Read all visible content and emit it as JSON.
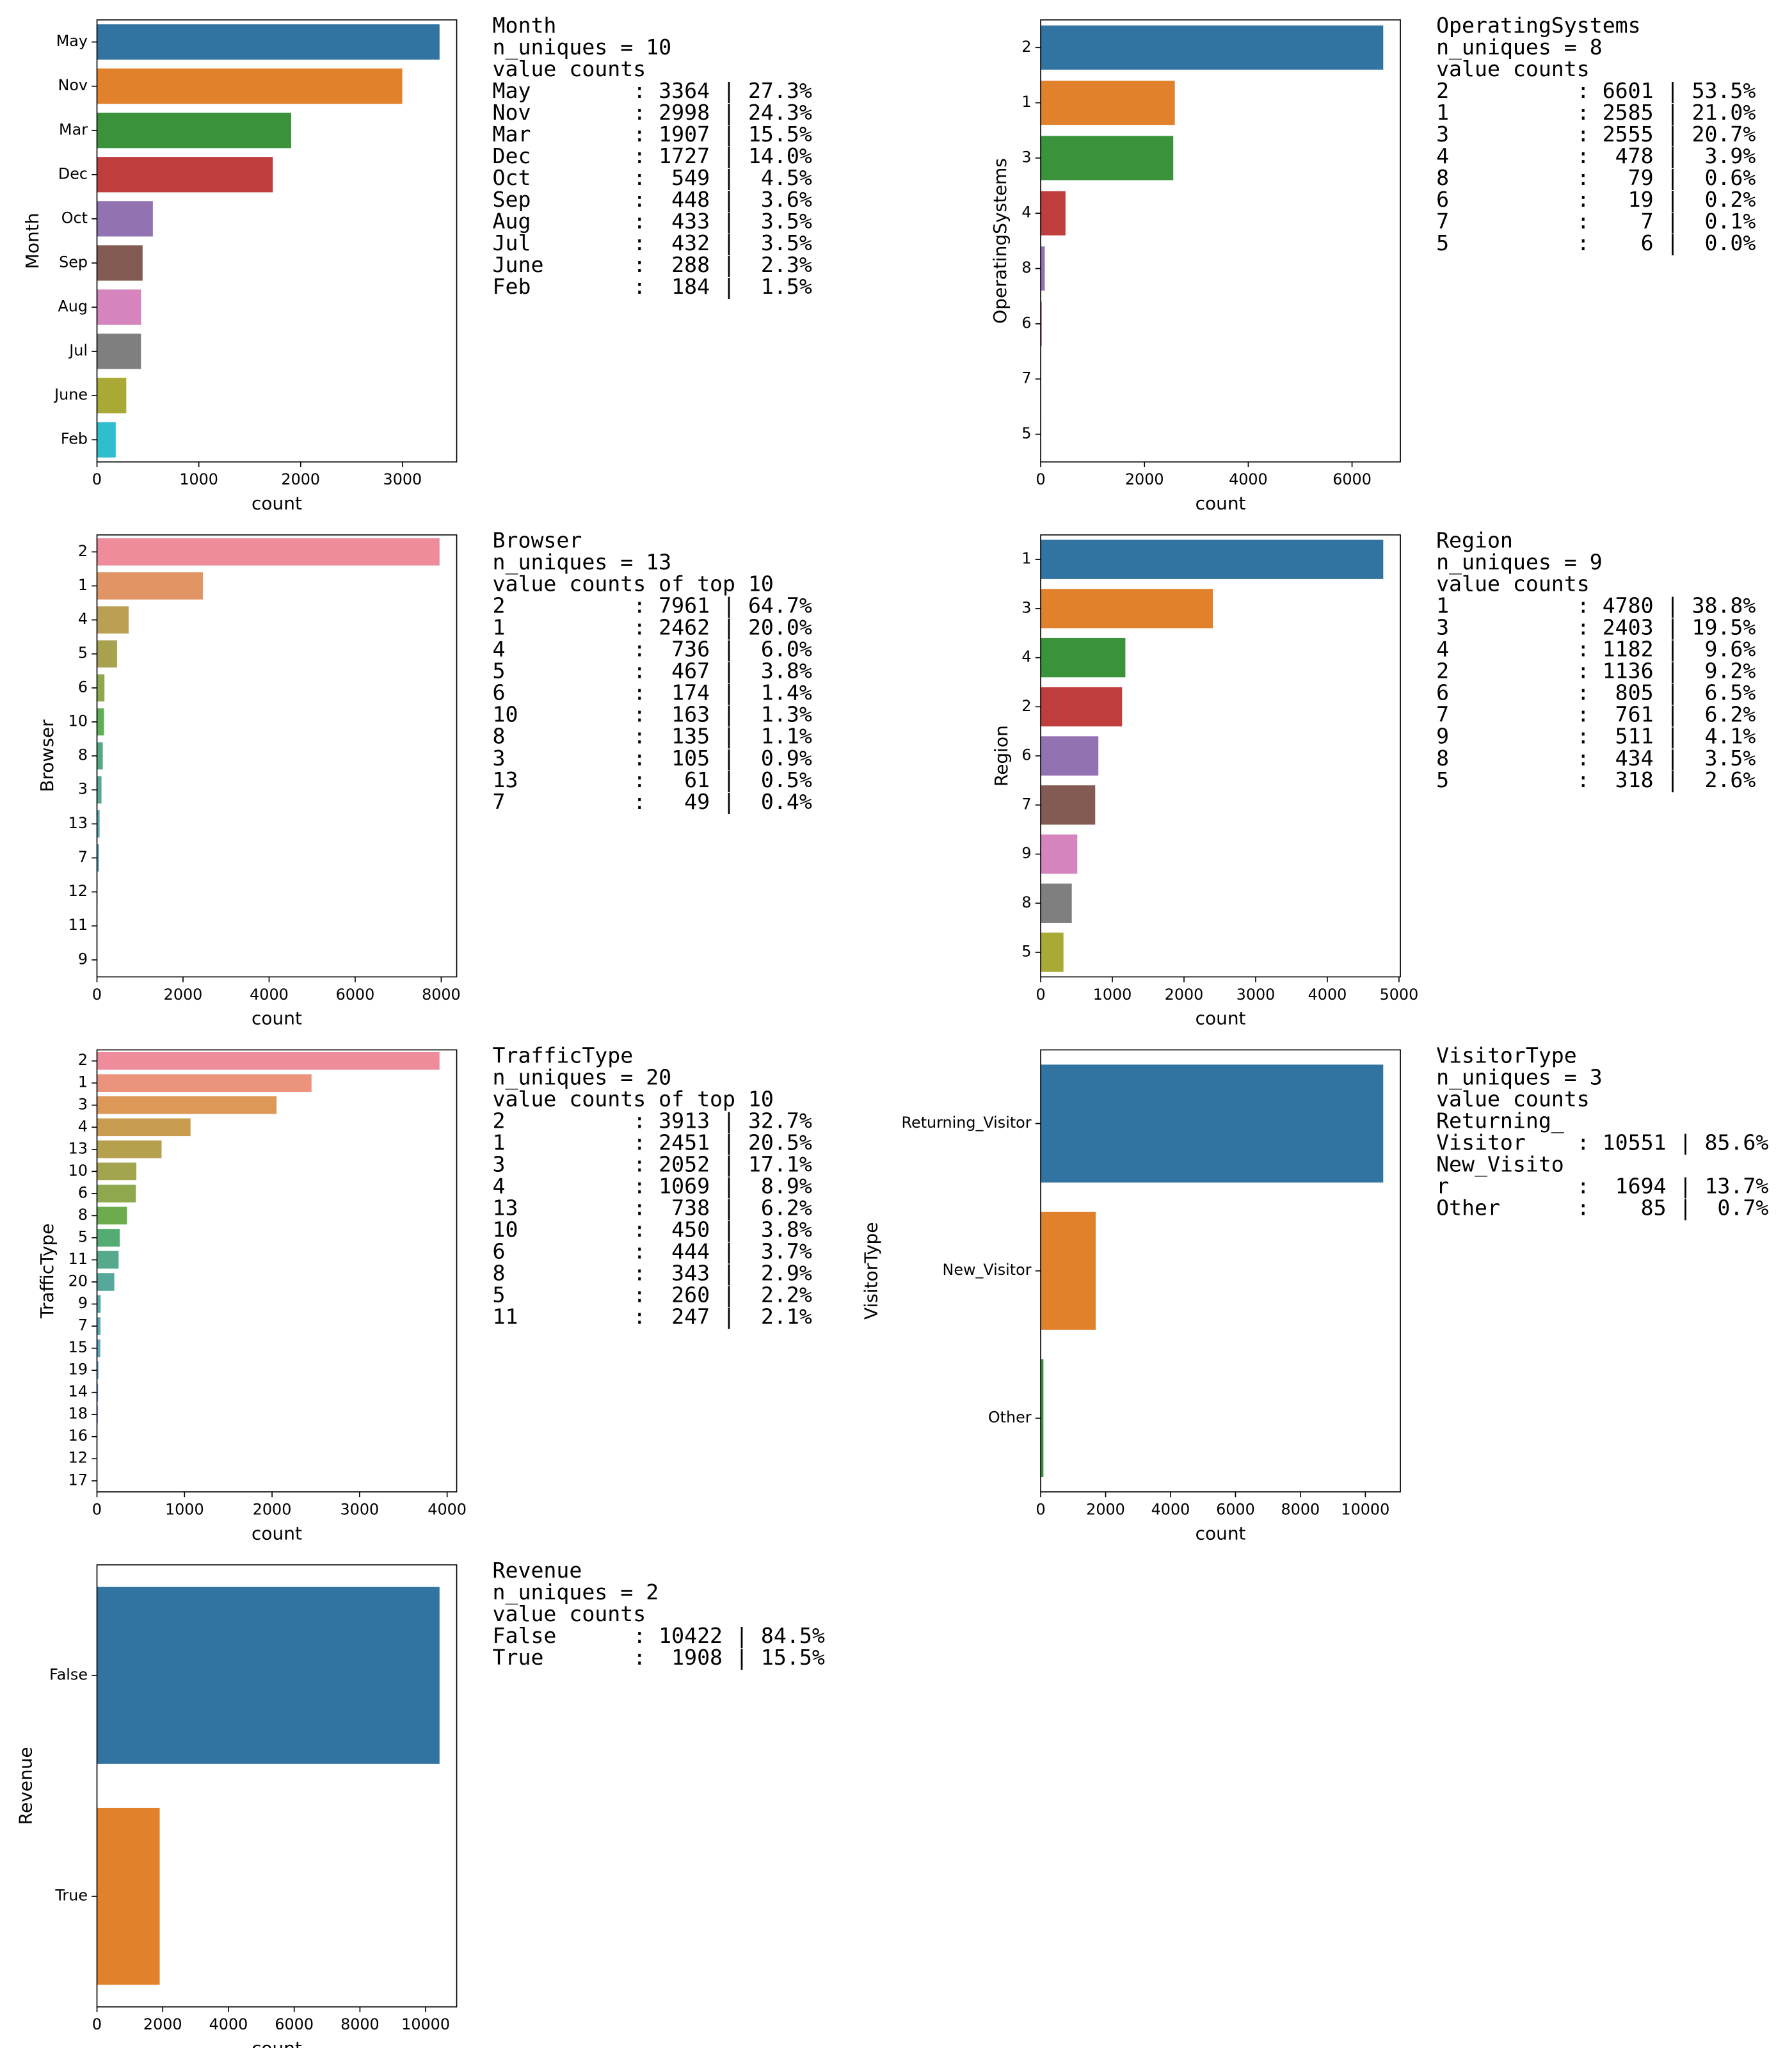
{
  "chart_data": [
    {
      "type": "bar",
      "orientation": "horizontal",
      "ylabel": "Month",
      "xlabel": "count",
      "categories": [
        "May",
        "Nov",
        "Mar",
        "Dec",
        "Oct",
        "Sep",
        "Aug",
        "Jul",
        "June",
        "Feb"
      ],
      "values": [
        3364,
        2998,
        1907,
        1727,
        549,
        448,
        433,
        432,
        288,
        184
      ],
      "colors": [
        "#3274a1",
        "#e1812c",
        "#3a923a",
        "#c03d3e",
        "#9372b2",
        "#845b53",
        "#d684bd",
        "#7f7f7f",
        "#a9aa35",
        "#2ebece"
      ],
      "xlim": [
        0,
        3532
      ],
      "xticks": [
        0,
        1000,
        2000,
        3000
      ],
      "summary": [
        "Month",
        "n_uniques = 10",
        "value counts",
        "May        : 3364 | 27.3%",
        "Nov        : 2998 | 24.3%",
        "Mar        : 1907 | 15.5%",
        "Dec        : 1727 | 14.0%",
        "Oct        :  549 |  4.5%",
        "Sep        :  448 |  3.6%",
        "Aug        :  433 |  3.5%",
        "Jul        :  432 |  3.5%",
        "June       :  288 |  2.3%",
        "Feb        :  184 |  1.5%"
      ]
    },
    {
      "type": "bar",
      "orientation": "horizontal",
      "ylabel": "OperatingSystems",
      "xlabel": "count",
      "categories": [
        "2",
        "1",
        "3",
        "4",
        "8",
        "6",
        "7",
        "5"
      ],
      "values": [
        6601,
        2585,
        2555,
        478,
        79,
        19,
        7,
        6
      ],
      "colors": [
        "#3274a1",
        "#e1812c",
        "#3a923a",
        "#c03d3e",
        "#9372b2",
        "#845b53",
        "#d684bd",
        "#7f7f7f"
      ],
      "xlim": [
        0,
        6931
      ],
      "xticks": [
        0,
        2000,
        4000,
        6000
      ],
      "summary": [
        "OperatingSystems",
        "n_uniques = 8",
        "value counts",
        "2          : 6601 | 53.5%",
        "1          : 2585 | 21.0%",
        "3          : 2555 | 20.7%",
        "4          :  478 |  3.9%",
        "8          :   79 |  0.6%",
        "6          :   19 |  0.2%",
        "7          :    7 |  0.1%",
        "5          :    6 |  0.0%"
      ]
    },
    {
      "type": "bar",
      "orientation": "horizontal",
      "ylabel": "Browser",
      "xlabel": "count",
      "categories": [
        "2",
        "1",
        "4",
        "5",
        "6",
        "10",
        "8",
        "3",
        "13",
        "7",
        "12",
        "11",
        "9"
      ],
      "values": [
        7961,
        2462,
        736,
        467,
        174,
        163,
        135,
        105,
        61,
        49,
        10,
        6,
        1
      ],
      "colors": [
        "#ee8c9b",
        "#e19565",
        "#bb9f52",
        "#a8a24f",
        "#8fa84f",
        "#5eae56",
        "#52ab80",
        "#55a898",
        "#57a6a9",
        "#5aa4bb",
        "#5e9fd6",
        "#9e8fe0",
        "#d97fd6"
      ],
      "xlim": [
        0,
        8359
      ],
      "xticks": [
        0,
        2000,
        4000,
        6000,
        8000
      ],
      "summary": [
        "Browser",
        "n_uniques = 13",
        "value counts of top 10",
        "2          : 7961 | 64.7%",
        "1          : 2462 | 20.0%",
        "4          :  736 |  6.0%",
        "5          :  467 |  3.8%",
        "6          :  174 |  1.4%",
        "10         :  163 |  1.3%",
        "8          :  135 |  1.1%",
        "3          :  105 |  0.9%",
        "13         :   61 |  0.5%",
        "7          :   49 |  0.4%"
      ]
    },
    {
      "type": "bar",
      "orientation": "horizontal",
      "ylabel": "Region",
      "xlabel": "count",
      "categories": [
        "1",
        "3",
        "4",
        "2",
        "6",
        "7",
        "9",
        "8",
        "5"
      ],
      "values": [
        4780,
        2403,
        1182,
        1136,
        805,
        761,
        511,
        434,
        318
      ],
      "colors": [
        "#3274a1",
        "#e1812c",
        "#3a923a",
        "#c03d3e",
        "#9372b2",
        "#845b53",
        "#d684bd",
        "#7f7f7f",
        "#a9aa35"
      ],
      "xlim": [
        0,
        5019
      ],
      "xticks": [
        0,
        1000,
        2000,
        3000,
        4000,
        5000
      ],
      "summary": [
        "Region",
        "n_uniques = 9",
        "value counts",
        "1          : 4780 | 38.8%",
        "3          : 2403 | 19.5%",
        "4          : 1182 |  9.6%",
        "2          : 1136 |  9.2%",
        "6          :  805 |  6.5%",
        "7          :  761 |  6.2%",
        "9          :  511 |  4.1%",
        "8          :  434 |  3.5%",
        "5          :  318 |  2.6%"
      ]
    },
    {
      "type": "bar",
      "orientation": "horizontal",
      "ylabel": "TrafficType",
      "xlabel": "count",
      "categories": [
        "2",
        "1",
        "3",
        "4",
        "13",
        "10",
        "6",
        "8",
        "5",
        "11",
        "20",
        "9",
        "7",
        "15",
        "19",
        "14",
        "18",
        "16",
        "12",
        "17"
      ],
      "values": [
        3913,
        2451,
        2052,
        1069,
        738,
        450,
        444,
        343,
        260,
        247,
        198,
        42,
        40,
        38,
        17,
        13,
        10,
        3,
        1,
        1
      ],
      "colors": [
        "#ee8c9b",
        "#ec937d",
        "#dd9857",
        "#c89c4e",
        "#b5a04e",
        "#a3a44e",
        "#8ea84e",
        "#6cac4f",
        "#53ad72",
        "#54aa8a",
        "#56a89a",
        "#57a6a6",
        "#58a5b2",
        "#5aa3bf",
        "#5ca0d1",
        "#7b98e0",
        "#a48ee0",
        "#c585df",
        "#dd7cd0",
        "#ea80b5"
      ],
      "xlim": [
        0,
        4109
      ],
      "xticks": [
        0,
        1000,
        2000,
        3000,
        4000
      ],
      "summary": [
        "TrafficType",
        "n_uniques = 20",
        "value counts of top 10",
        "2          : 3913 | 32.7%",
        "1          : 2451 | 20.5%",
        "3          : 2052 | 17.1%",
        "4          : 1069 |  8.9%",
        "13         :  738 |  6.2%",
        "10         :  450 |  3.8%",
        "6          :  444 |  3.7%",
        "8          :  343 |  2.9%",
        "5          :  260 |  2.2%",
        "11         :  247 |  2.1%"
      ]
    },
    {
      "type": "bar",
      "orientation": "horizontal",
      "ylabel": "VisitorType",
      "xlabel": "count",
      "categories": [
        "Returning_Visitor",
        "New_Visitor",
        "Other"
      ],
      "values": [
        10551,
        1694,
        85
      ],
      "colors": [
        "#3274a1",
        "#e1812c",
        "#3a923a"
      ],
      "xlim": [
        0,
        11079
      ],
      "xticks": [
        0,
        2000,
        4000,
        6000,
        8000,
        10000
      ],
      "summary": [
        "VisitorType",
        "n_uniques = 3",
        "value counts",
        "Returning_",
        "Visitor    : 10551 | 85.6%",
        "New_Visito",
        "r          :  1694 | 13.7%",
        "Other      :    85 |  0.7%"
      ]
    },
    {
      "type": "bar",
      "orientation": "horizontal",
      "ylabel": "Revenue",
      "xlabel": "count",
      "categories": [
        "False",
        "True"
      ],
      "values": [
        10422,
        1908
      ],
      "colors": [
        "#3274a1",
        "#e1812c"
      ],
      "xlim": [
        0,
        10943
      ],
      "xticks": [
        0,
        2000,
        4000,
        6000,
        8000,
        10000
      ],
      "summary": [
        "Revenue",
        "n_uniques = 2",
        "value counts",
        "False      : 10422 | 84.5%",
        "True       :  1908 | 15.5%"
      ]
    }
  ]
}
